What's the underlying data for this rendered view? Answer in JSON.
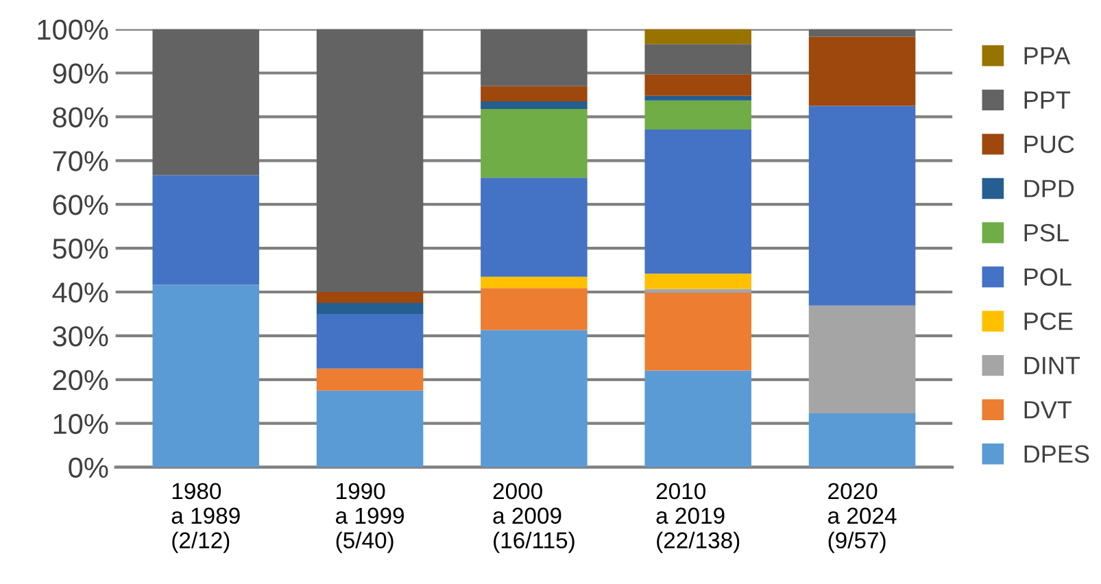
{
  "chart_data": {
    "type": "bar",
    "stacked": true,
    "categories": [
      "1980\na 1989\n(2/12)",
      "1990\na 1999\n(5/40)",
      "2000\na 2009\n(16/115)",
      "2010\na 2019\n(22/138)",
      "2020\na 2024\n(9/57)"
    ],
    "series": [
      {
        "name": "DPES",
        "color": "#5b9bd5",
        "values": [
          41.7,
          17.5,
          31.3,
          22.1,
          12.3
        ]
      },
      {
        "name": "DVT",
        "color": "#ed7d31",
        "values": [
          0,
          5,
          9.6,
          17.7,
          0
        ]
      },
      {
        "name": "DINT",
        "color": "#a5a5a5",
        "values": [
          0,
          0,
          0,
          0.9,
          24.6
        ]
      },
      {
        "name": "PCE",
        "color": "#ffc000",
        "values": [
          0,
          0,
          2.6,
          3.5,
          0
        ]
      },
      {
        "name": "POL",
        "color": "#4472c4",
        "values": [
          25,
          12.5,
          22.6,
          32.9,
          45.6
        ]
      },
      {
        "name": "PSL",
        "color": "#70ad47",
        "values": [
          0,
          0,
          15.7,
          6.6,
          0
        ]
      },
      {
        "name": "DPD",
        "color": "#255e91",
        "values": [
          0,
          2.5,
          1.7,
          1.1,
          0
        ]
      },
      {
        "name": "PUC",
        "color": "#9e480e",
        "values": [
          0,
          2.5,
          3.5,
          4.9,
          15.8
        ]
      },
      {
        "name": "PPT",
        "color": "#636363",
        "values": [
          33.3,
          60,
          13,
          6.9,
          1.7
        ]
      },
      {
        "name": "PPA",
        "color": "#997300",
        "values": [
          0,
          0,
          0,
          3.4,
          0
        ]
      }
    ],
    "ylim": [
      0,
      100
    ],
    "yticks": [
      {
        "value": 0,
        "label": "0%"
      },
      {
        "value": 10,
        "label": "10%"
      },
      {
        "value": 20,
        "label": "20%"
      },
      {
        "value": 30,
        "label": "30%"
      },
      {
        "value": 40,
        "label": "40%"
      },
      {
        "value": 50,
        "label": "50%"
      },
      {
        "value": 60,
        "label": "60%"
      },
      {
        "value": 70,
        "label": "70%"
      },
      {
        "value": 80,
        "label": "80%"
      },
      {
        "value": 90,
        "label": "90%"
      },
      {
        "value": 100,
        "label": "100%"
      }
    ],
    "grid": "y",
    "legend": "right"
  }
}
